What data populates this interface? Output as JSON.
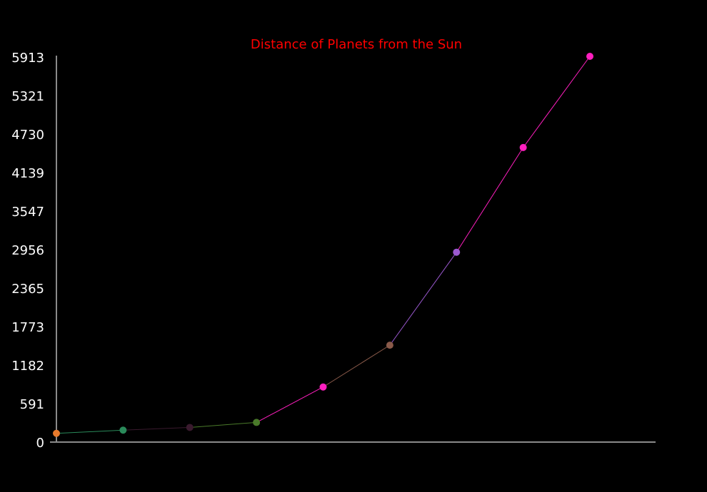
{
  "chart_data": {
    "type": "line",
    "title": "Distance of Planets from the Sun",
    "xlabel": "",
    "ylabel": "",
    "yticks": [
      "0",
      "591",
      "1182",
      "1773",
      "2365",
      "2956",
      "3547",
      "4139",
      "4730",
      "5321",
      "5913"
    ],
    "ylim": [
      0,
      5913
    ],
    "grid": false,
    "values": [
      58,
      108,
      150,
      228,
      778,
      1427,
      2871,
      4497,
      5913
    ],
    "point_colors": [
      "#e87a2c",
      "#2a8a5a",
      "#3a1a2e",
      "#4a7a2a",
      "#ff1fbf",
      "#8a5a4a",
      "#9b59d0",
      "#ff1fbf",
      "#ff1fbf"
    ]
  }
}
